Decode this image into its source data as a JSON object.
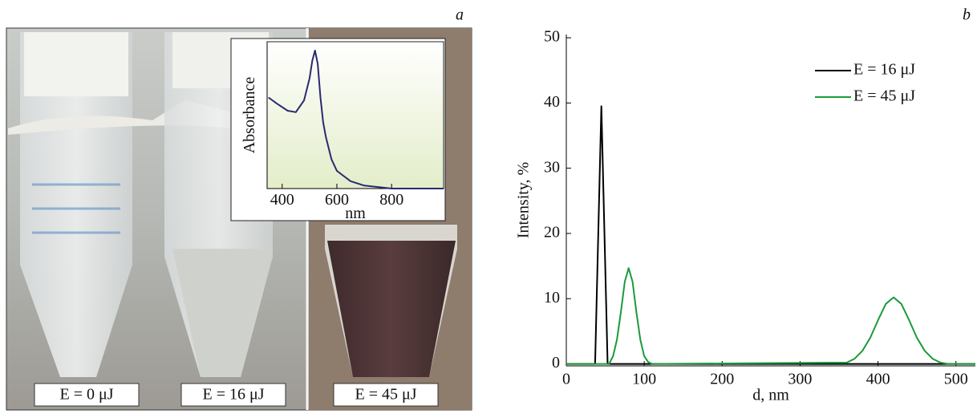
{
  "panel_labels": [
    "a",
    "b"
  ],
  "photo_labels": [
    "E = 0 μJ",
    "E = 16 μJ",
    "E = 45 μJ"
  ],
  "chart_data": [
    {
      "type": "line",
      "xlabel": "nm",
      "ylabel": "Absorbance",
      "x": [
        350,
        380,
        420,
        450,
        480,
        500,
        510,
        520,
        530,
        540,
        550,
        560,
        580,
        600,
        650,
        700,
        800,
        990
      ],
      "series": [
        {
          "color": "#2a2a70",
          "values": [
            0.62,
            0.58,
            0.53,
            0.52,
            0.6,
            0.75,
            0.87,
            0.94,
            0.85,
            0.62,
            0.45,
            0.35,
            0.2,
            0.12,
            0.05,
            0.02,
            0,
            0
          ]
        }
      ],
      "xlim": [
        345,
        990
      ],
      "ylim": [
        0,
        1
      ],
      "xticks": [
        400,
        600,
        800
      ]
    },
    {
      "type": "line",
      "xlabel": "d, nm",
      "ylabel": "Intensity, %",
      "series": [
        {
          "name": "E = 16 μJ",
          "color": "#000000",
          "x": [
            0,
            37,
            45,
            53,
            525
          ],
          "values": [
            0,
            0,
            39.5,
            0,
            0
          ]
        },
        {
          "name": "E = 45 μJ",
          "color": "#1a9a3a",
          "x": [
            0,
            55,
            60,
            65,
            70,
            75,
            80,
            85,
            90,
            95,
            100,
            105,
            110,
            360,
            370,
            380,
            390,
            400,
            410,
            420,
            430,
            440,
            450,
            460,
            470,
            480,
            490,
            525
          ],
          "values": [
            0,
            0,
            1.2,
            3.7,
            7.9,
            12.6,
            14.7,
            12.6,
            7.9,
            3.7,
            1.2,
            0.3,
            0,
            0.2,
            0.8,
            2.0,
            4.0,
            6.7,
            9.2,
            10.2,
            9.2,
            6.7,
            4.0,
            2.0,
            0.8,
            0.2,
            0,
            0
          ]
        }
      ],
      "xlim": [
        0,
        525
      ],
      "ylim": [
        -0.3,
        50.5
      ],
      "xticks": [
        0,
        100,
        200,
        300,
        400,
        500
      ],
      "yticks": [
        0,
        10,
        20,
        30,
        40,
        50
      ],
      "legend": "upper right"
    }
  ]
}
